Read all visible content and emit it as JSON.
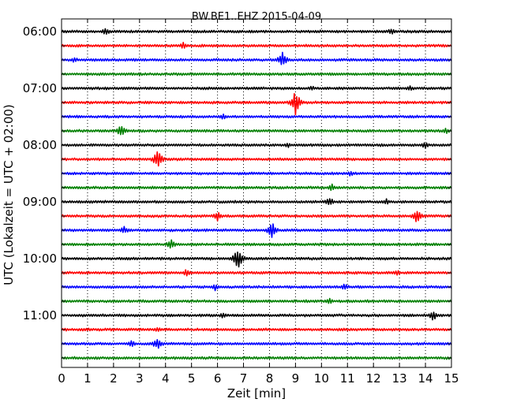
{
  "chart_data": {
    "type": "line",
    "title": "BW.BE1..EHZ 2015-04-09",
    "xlabel": "Zeit  [min]",
    "ylabel": "UTC (Lokalzeit = UTC + 02:00)",
    "xlim": [
      0,
      15
    ],
    "x_ticks": [
      0,
      1,
      2,
      3,
      4,
      5,
      6,
      7,
      8,
      9,
      10,
      11,
      12,
      13,
      14,
      15
    ],
    "grid": "vertical dotted lines at each minute",
    "trace_interval_minutes": 15,
    "trace_start": "06:00",
    "y_tick_labels": [
      "06:00",
      "07:00",
      "08:00",
      "09:00",
      "10:00",
      "11:00"
    ],
    "colors": [
      "#000000",
      "#ff0000",
      "#0000ff",
      "#008000"
    ],
    "series": [
      {
        "start": "06:00",
        "color": "#000000",
        "events": [
          {
            "x": 1.7,
            "amp": 5
          },
          {
            "x": 12.7,
            "amp": 5
          }
        ]
      },
      {
        "start": "06:15",
        "color": "#ff0000",
        "events": [
          {
            "x": 4.7,
            "amp": 5
          }
        ]
      },
      {
        "start": "06:30",
        "color": "#0000ff",
        "events": [
          {
            "x": 0.5,
            "amp": 4
          },
          {
            "x": 8.5,
            "amp": 11
          }
        ]
      },
      {
        "start": "06:45",
        "color": "#008000",
        "events": []
      },
      {
        "start": "07:00",
        "color": "#000000",
        "events": [
          {
            "x": 9.6,
            "amp": 4
          },
          {
            "x": 13.4,
            "amp": 4
          }
        ]
      },
      {
        "start": "07:15",
        "color": "#ff0000",
        "events": [
          {
            "x": 9.0,
            "amp": 16
          }
        ]
      },
      {
        "start": "07:30",
        "color": "#0000ff",
        "events": [
          {
            "x": 6.2,
            "amp": 4
          }
        ]
      },
      {
        "start": "07:45",
        "color": "#008000",
        "events": [
          {
            "x": 2.3,
            "amp": 8
          },
          {
            "x": 14.8,
            "amp": 4
          }
        ]
      },
      {
        "start": "08:00",
        "color": "#000000",
        "events": [
          {
            "x": 8.7,
            "amp": 4
          },
          {
            "x": 14.0,
            "amp": 5
          }
        ]
      },
      {
        "start": "08:15",
        "color": "#ff0000",
        "events": [
          {
            "x": 3.7,
            "amp": 12
          }
        ]
      },
      {
        "start": "08:30",
        "color": "#0000ff",
        "events": [
          {
            "x": 11.1,
            "amp": 4
          }
        ]
      },
      {
        "start": "08:45",
        "color": "#008000",
        "events": [
          {
            "x": 10.4,
            "amp": 5
          }
        ]
      },
      {
        "start": "09:00",
        "color": "#000000",
        "events": [
          {
            "x": 10.3,
            "amp": 7
          },
          {
            "x": 12.5,
            "amp": 4
          }
        ]
      },
      {
        "start": "09:15",
        "color": "#ff0000",
        "events": [
          {
            "x": 6.0,
            "amp": 7
          },
          {
            "x": 13.7,
            "amp": 11
          }
        ]
      },
      {
        "start": "09:30",
        "color": "#0000ff",
        "events": [
          {
            "x": 2.4,
            "amp": 6
          },
          {
            "x": 8.1,
            "amp": 11
          }
        ]
      },
      {
        "start": "09:45",
        "color": "#008000",
        "events": [
          {
            "x": 4.2,
            "amp": 7
          }
        ]
      },
      {
        "start": "10:00",
        "color": "#000000",
        "events": [
          {
            "x": 6.8,
            "amp": 16
          }
        ]
      },
      {
        "start": "10:15",
        "color": "#ff0000",
        "events": [
          {
            "x": 4.8,
            "amp": 5
          },
          {
            "x": 12.9,
            "amp": 4
          }
        ]
      },
      {
        "start": "10:30",
        "color": "#0000ff",
        "events": [
          {
            "x": 5.9,
            "amp": 5
          },
          {
            "x": 10.9,
            "amp": 5
          }
        ]
      },
      {
        "start": "10:45",
        "color": "#008000",
        "events": [
          {
            "x": 10.3,
            "amp": 5
          }
        ]
      },
      {
        "start": "11:00",
        "color": "#000000",
        "events": [
          {
            "x": 6.2,
            "amp": 4
          },
          {
            "x": 14.3,
            "amp": 7
          }
        ]
      },
      {
        "start": "11:15",
        "color": "#ff0000",
        "events": [
          {
            "x": 3.7,
            "amp": 4
          }
        ]
      },
      {
        "start": "11:30",
        "color": "#0000ff",
        "events": [
          {
            "x": 2.7,
            "amp": 5
          },
          {
            "x": 3.7,
            "amp": 9
          }
        ]
      },
      {
        "start": "11:45",
        "color": "#008000",
        "events": []
      }
    ]
  }
}
